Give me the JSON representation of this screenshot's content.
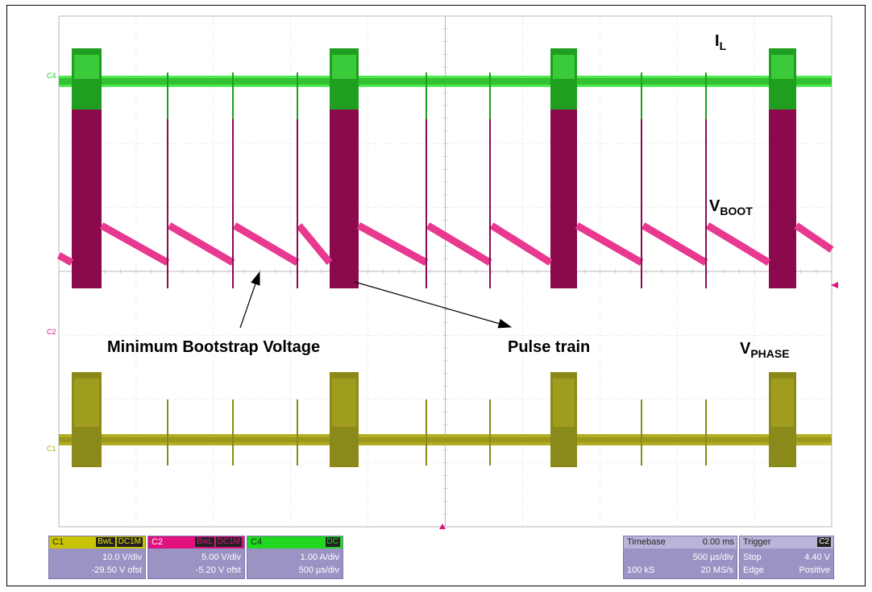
{
  "trace_labels": {
    "il_main": "I",
    "il_sub": "L",
    "vboot_main": "V",
    "vboot_sub": "BOOT",
    "vphase_main": "V",
    "vphase_sub": "PHASE"
  },
  "annotations": {
    "min_bootstrap": "Minimum Bootstrap Voltage",
    "pulse_train": "Pulse train"
  },
  "channel_markers": {
    "c4": "C4",
    "c2": "C2",
    "c1": "C1"
  },
  "channels": {
    "c1": {
      "name": "C1",
      "tag1": "BwL",
      "tag2": "DC1M",
      "scale": "10.0 V/div",
      "offset": "-29.50 V ofst",
      "color": "#b5ad00"
    },
    "c2": {
      "name": "C2",
      "tag1": "BwL",
      "tag2": "DC1M",
      "scale": "5.00 V/div",
      "offset": "-5.20 V ofst",
      "color": "#e0117f"
    },
    "c4": {
      "name": "C4",
      "tag1": "DC",
      "scale": "1.00 A/div",
      "offset": "500 µs/div",
      "color": "#1fd81f"
    }
  },
  "timebase": {
    "label": "Timebase",
    "delay": "0.00 ms",
    "per_div": "500 µs/div",
    "samples": "100 kS",
    "rate": "20 MS/s"
  },
  "trigger": {
    "label": "Trigger",
    "source": "C2",
    "mode": "Stop",
    "level": "4.40 V",
    "type": "Edge",
    "slope": "Positive"
  },
  "colors": {
    "il_trace": "#1f9e1f",
    "il_bright": "#4ce84c",
    "vboot_trace": "#8b0a4e",
    "vboot_ramp": "#e8388f",
    "vphase_trace": "#8a8a1a",
    "vphase_bright": "#b2ad22",
    "grid": "#b8b8b8",
    "trigger_marker": "#e0117f"
  }
}
